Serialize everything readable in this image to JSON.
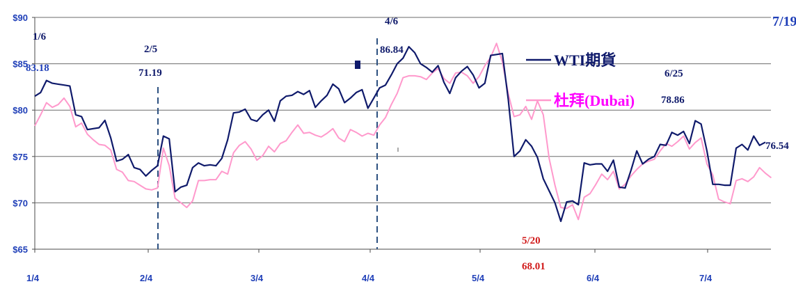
{
  "chart_data": {
    "type": "line",
    "y_axis": {
      "ticks": [
        "$90",
        "$85",
        "$80",
        "$75",
        "$70",
        "$65"
      ],
      "tick_values": [
        90,
        85,
        80,
        75,
        70,
        65
      ],
      "ylim": [
        65,
        90
      ]
    },
    "x_axis": {
      "ticks": [
        "1/4",
        "2/4",
        "3/4",
        "4/4",
        "5/4",
        "6/4",
        "7/4"
      ]
    },
    "legend": {
      "items": [
        {
          "label": "WTI期貨",
          "color": "#0f1a6b"
        },
        {
          "label": "杜拜(Dubai)",
          "color": "#ff00ff"
        }
      ],
      "placement": "top-right"
    },
    "annotations": [
      {
        "date": "1/6",
        "value": "83.18",
        "color": "#0f1a6b"
      },
      {
        "date": "2/5",
        "value": "71.19",
        "color": "#0f1a6b"
      },
      {
        "date": "4/6",
        "value": "86.84",
        "color": "#0f1a6b"
      },
      {
        "date": "5/20",
        "value": "68.01",
        "color": "#d11a1a"
      },
      {
        "date": "6/25",
        "value": "78.86",
        "color": "#0f1a6b"
      },
      {
        "date": "7/19",
        "value": "76.54",
        "color": "#0f1a6b"
      }
    ],
    "series": [
      {
        "name": "WTI期貨",
        "color": "#0f1a6b",
        "values": [
          81.5,
          81.9,
          83.2,
          82.9,
          82.8,
          82.7,
          82.6,
          79.5,
          79.3,
          77.9,
          78.0,
          78.1,
          78.9,
          77.0,
          74.5,
          74.7,
          75.2,
          73.8,
          73.6,
          72.9,
          73.5,
          74.0,
          77.2,
          76.9,
          71.2,
          71.7,
          71.9,
          73.8,
          74.3,
          74.0,
          74.1,
          74.0,
          74.8,
          76.8,
          79.7,
          79.8,
          80.1,
          79.0,
          78.8,
          79.5,
          80.0,
          78.8,
          81.0,
          81.5,
          81.6,
          82.0,
          81.7,
          82.1,
          80.3,
          81.0,
          81.6,
          82.8,
          82.3,
          80.8,
          81.3,
          81.9,
          82.2,
          80.2,
          81.3,
          82.4,
          82.7,
          83.8,
          85.0,
          85.6,
          86.84,
          86.2,
          85.0,
          84.6,
          84.1,
          84.8,
          83.0,
          81.8,
          83.5,
          84.2,
          84.7,
          83.8,
          82.4,
          82.9,
          85.9,
          86.0,
          86.1,
          81.2,
          75.0,
          75.6,
          76.8,
          76.1,
          74.9,
          72.6,
          71.3,
          70.0,
          68.01,
          70.1,
          70.2,
          69.8,
          74.3,
          74.1,
          74.2,
          74.2,
          73.4,
          74.6,
          71.7,
          71.6,
          73.5,
          75.6,
          74.2,
          74.7,
          75.0,
          76.3,
          76.2,
          77.6,
          77.3,
          77.7,
          76.4,
          78.86,
          78.5,
          75.6,
          72.0,
          72.0,
          71.9,
          71.9,
          75.9,
          76.3,
          75.7,
          77.2,
          76.2,
          76.54
        ]
      },
      {
        "name": "杜拜(Dubai)",
        "color": "#ff00ff",
        "values": [
          78.3,
          79.5,
          80.8,
          80.3,
          80.6,
          81.3,
          80.4,
          78.2,
          78.6,
          77.4,
          76.8,
          76.3,
          76.2,
          75.7,
          73.6,
          73.3,
          72.4,
          72.3,
          71.9,
          71.5,
          71.4,
          71.6,
          75.9,
          74.0,
          70.5,
          70.0,
          69.5,
          70.2,
          72.4,
          72.4,
          72.5,
          72.5,
          73.4,
          73.1,
          75.4,
          76.2,
          76.6,
          75.8,
          74.6,
          75.1,
          76.1,
          75.5,
          76.4,
          76.7,
          77.6,
          78.4,
          77.5,
          77.6,
          77.3,
          77.1,
          77.5,
          78.0,
          77.0,
          76.6,
          77.9,
          77.6,
          77.2,
          77.5,
          77.3,
          78.4,
          79.2,
          80.6,
          81.8,
          83.5,
          83.7,
          83.7,
          83.6,
          83.3,
          84.0,
          84.5,
          83.4,
          82.9,
          84.0,
          84.1,
          83.7,
          82.9,
          83.6,
          84.8,
          85.7,
          87.2,
          85.2,
          81.8,
          79.3,
          79.5,
          80.4,
          79.0,
          81.0,
          79.5,
          74.8,
          71.9,
          69.5,
          69.4,
          69.8,
          68.2,
          70.6,
          71.0,
          72.0,
          73.1,
          72.5,
          73.4,
          71.5,
          72.0,
          72.9,
          73.6,
          74.2,
          74.5,
          74.7,
          75.6,
          76.4,
          76.1,
          76.6,
          77.2,
          75.8,
          76.5,
          77.0,
          74.2,
          73.0,
          70.4,
          70.1,
          69.9,
          72.4,
          72.6,
          72.3,
          72.8,
          73.8,
          73.2,
          72.7
        ]
      }
    ]
  }
}
